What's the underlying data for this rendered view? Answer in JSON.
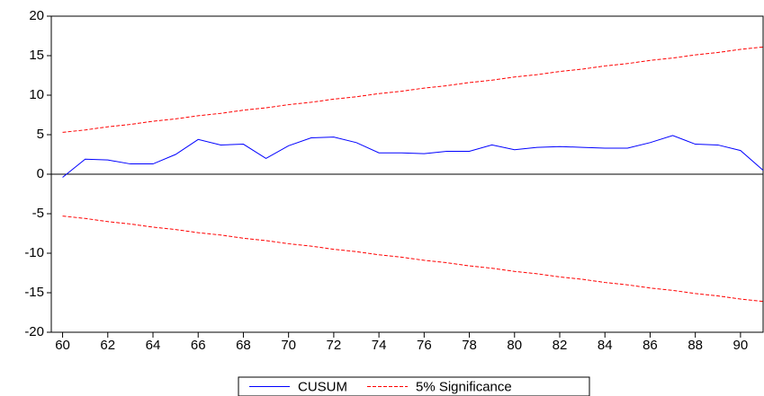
{
  "chart_data": {
    "type": "line",
    "x": [
      60,
      61,
      62,
      63,
      64,
      65,
      66,
      67,
      68,
      69,
      70,
      71,
      72,
      73,
      74,
      75,
      76,
      77,
      78,
      79,
      80,
      81,
      82,
      83,
      84,
      85,
      86,
      87,
      88,
      89,
      90,
      91
    ],
    "series": [
      {
        "name": "CUSUM",
        "color": "#0000ff",
        "dashed": false,
        "values": [
          -0.4,
          1.9,
          1.8,
          1.3,
          1.3,
          2.5,
          4.4,
          3.7,
          3.8,
          2.0,
          3.6,
          4.6,
          4.7,
          4.0,
          2.7,
          2.7,
          2.6,
          2.9,
          2.9,
          3.7,
          3.1,
          3.4,
          3.5,
          3.4,
          3.3,
          3.3,
          4.0,
          4.9,
          3.8,
          3.7,
          3.0,
          0.5
        ]
      },
      {
        "name": "5% Significance",
        "color": "#ff0000",
        "dashed": true,
        "values": [
          5.3,
          5.6,
          6.0,
          6.3,
          6.7,
          7.0,
          7.4,
          7.7,
          8.1,
          8.4,
          8.8,
          9.1,
          9.5,
          9.8,
          10.2,
          10.5,
          10.9,
          11.2,
          11.6,
          11.9,
          12.3,
          12.6,
          13.0,
          13.3,
          13.7,
          14.0,
          14.4,
          14.7,
          15.1,
          15.4,
          15.8,
          16.1
        ],
        "lower_values": [
          -5.3,
          -5.6,
          -6.0,
          -6.3,
          -6.7,
          -7.0,
          -7.4,
          -7.7,
          -8.1,
          -8.4,
          -8.8,
          -9.1,
          -9.5,
          -9.8,
          -10.2,
          -10.5,
          -10.9,
          -11.2,
          -11.6,
          -11.9,
          -12.3,
          -12.6,
          -13.0,
          -13.3,
          -13.7,
          -14.0,
          -14.4,
          -14.7,
          -15.1,
          -15.4,
          -15.8,
          -16.1
        ]
      }
    ],
    "xlim": [
      59.5,
      91
    ],
    "xticks": [
      60,
      62,
      64,
      66,
      68,
      70,
      72,
      74,
      76,
      78,
      80,
      82,
      84,
      86,
      88,
      90
    ],
    "ylim": [
      -20,
      20
    ],
    "yticks": [
      -20,
      -15,
      -10,
      -5,
      0,
      5,
      10,
      15,
      20
    ],
    "zero_line": true,
    "legend": "bottom"
  }
}
